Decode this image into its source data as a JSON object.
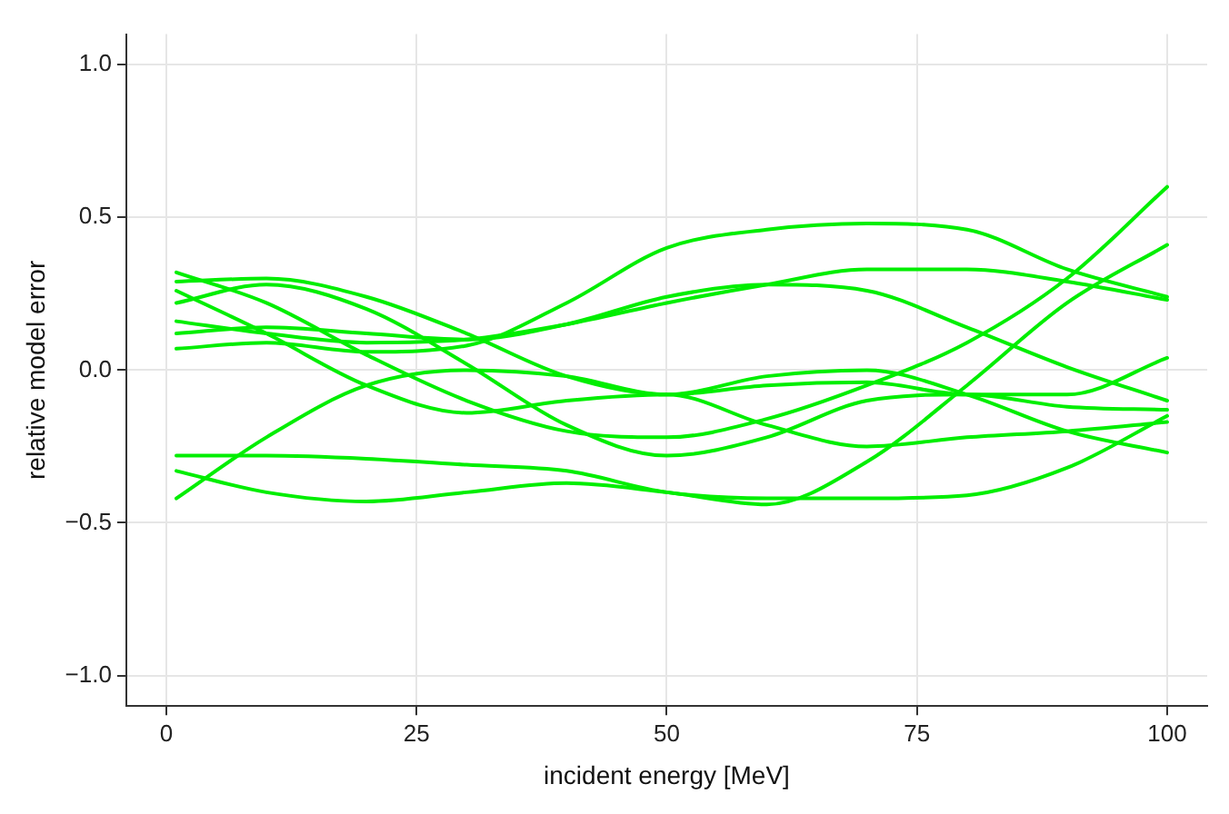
{
  "chart_data": {
    "type": "line",
    "xlabel": "incident energy [MeV]",
    "ylabel": "relative model error",
    "x": [
      1,
      10,
      20,
      30,
      40,
      50,
      60,
      70,
      80,
      90,
      100
    ],
    "series": [
      {
        "color": "#00ee00",
        "values": [
          0.07,
          0.09,
          0.06,
          0.08,
          0.22,
          0.4,
          0.46,
          0.48,
          0.46,
          0.33,
          0.24
        ]
      },
      {
        "color": "#00ee00",
        "values": [
          0.16,
          0.12,
          0.09,
          0.1,
          0.15,
          0.22,
          0.28,
          0.33,
          0.33,
          0.29,
          0.23
        ]
      },
      {
        "color": "#00ee00",
        "values": [
          0.12,
          0.14,
          0.12,
          0.1,
          0.15,
          0.24,
          0.28,
          0.26,
          0.14,
          0.01,
          -0.1
        ]
      },
      {
        "color": "#00ee00",
        "values": [
          0.32,
          0.22,
          0.05,
          -0.1,
          -0.2,
          -0.22,
          -0.16,
          -0.05,
          0.09,
          0.3,
          0.6
        ]
      },
      {
        "color": "#00ee00",
        "values": [
          -0.33,
          -0.4,
          -0.43,
          -0.4,
          -0.37,
          -0.4,
          -0.44,
          -0.3,
          -0.05,
          0.22,
          0.41
        ]
      },
      {
        "color": "#00ee00",
        "values": [
          -0.28,
          -0.28,
          -0.29,
          -0.31,
          -0.33,
          -0.4,
          -0.42,
          -0.42,
          -0.41,
          -0.32,
          -0.15
        ]
      },
      {
        "color": "#00ee00",
        "values": [
          -0.42,
          -0.22,
          -0.05,
          0.0,
          -0.02,
          -0.08,
          -0.05,
          -0.04,
          -0.08,
          -0.08,
          0.04
        ]
      },
      {
        "color": "#00ee00",
        "values": [
          0.29,
          0.3,
          0.24,
          0.12,
          -0.02,
          -0.08,
          -0.02,
          0.0,
          -0.08,
          -0.2,
          -0.27
        ]
      },
      {
        "color": "#00ee00",
        "values": [
          0.22,
          0.28,
          0.2,
          0.02,
          -0.18,
          -0.28,
          -0.22,
          -0.1,
          -0.08,
          -0.12,
          -0.13
        ]
      },
      {
        "color": "#00ee00",
        "values": [
          0.26,
          0.12,
          -0.05,
          -0.14,
          -0.1,
          -0.08,
          -0.18,
          -0.25,
          -0.22,
          -0.2,
          -0.17
        ]
      }
    ],
    "xlim": [
      -4,
      104
    ],
    "xticks": [
      0,
      25,
      50,
      75,
      100
    ],
    "ylim": [
      -1.1,
      1.1
    ],
    "yticks": [
      {
        "value": -1,
        "label": "−1.0"
      },
      {
        "value": -0.5,
        "label": "−0.5"
      },
      {
        "value": 0,
        "label": "0.0"
      },
      {
        "value": 0.5,
        "label": "0.5"
      },
      {
        "value": 1,
        "label": "1.0"
      }
    ],
    "grid": true,
    "legend": false,
    "marker": "none",
    "line_style": "solid"
  }
}
